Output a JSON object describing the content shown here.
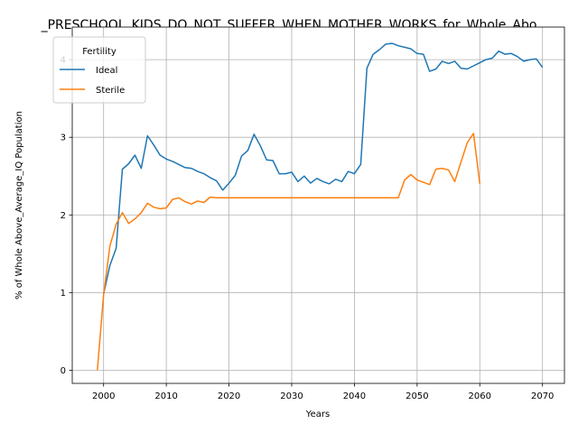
{
  "chart_data": {
    "type": "line",
    "title": "_PRESCHOOL_KIDS_DO_NOT_SUFFER_WHEN_MOTHER_WORKS_for_Whole_Abo",
    "xlabel": "Years",
    "ylabel": "% of Whole Above_Average_IQ Population",
    "xlim": [
      1995,
      2073.5
    ],
    "ylim": [
      -0.17,
      4.42
    ],
    "xticks": [
      2000,
      2010,
      2020,
      2030,
      2040,
      2050,
      2060,
      2070
    ],
    "yticks": [
      0,
      1,
      2,
      3,
      4
    ],
    "grid": true,
    "legend": {
      "title": "Fertility",
      "position": "top-left"
    },
    "series": [
      {
        "name": "Ideal",
        "color": "#1f77b4",
        "x": [
          2000,
          2001,
          2002,
          2003,
          2004,
          2005,
          2006,
          2007,
          2008,
          2009,
          2010,
          2011,
          2012,
          2013,
          2014,
          2015,
          2016,
          2017,
          2018,
          2019,
          2020,
          2021,
          2022,
          2023,
          2024,
          2025,
          2026,
          2027,
          2028,
          2029,
          2030,
          2031,
          2032,
          2033,
          2034,
          2035,
          2036,
          2037,
          2038,
          2039,
          2040,
          2041,
          2042,
          2043,
          2044,
          2045,
          2046,
          2047,
          2048,
          2049,
          2050,
          2051,
          2052,
          2053,
          2054,
          2055,
          2056,
          2057,
          2058,
          2059,
          2060,
          2061,
          2062,
          2063,
          2064,
          2065,
          2066,
          2067,
          2068,
          2069,
          2070
        ],
        "y": [
          0.98,
          1.35,
          1.57,
          2.59,
          2.66,
          2.77,
          2.6,
          3.02,
          2.9,
          2.77,
          2.72,
          2.69,
          2.65,
          2.61,
          2.6,
          2.56,
          2.53,
          2.48,
          2.44,
          2.32,
          2.41,
          2.51,
          2.76,
          2.83,
          3.04,
          2.89,
          2.71,
          2.7,
          2.53,
          2.53,
          2.55,
          2.43,
          2.5,
          2.41,
          2.47,
          2.43,
          2.4,
          2.46,
          2.43,
          2.56,
          2.53,
          2.65,
          3.89,
          4.07,
          4.13,
          4.2,
          4.21,
          4.18,
          4.16,
          4.14,
          4.08,
          4.07,
          3.85,
          3.88,
          3.98,
          3.95,
          3.98,
          3.89,
          3.88,
          3.92,
          3.96,
          4.0,
          4.02,
          4.11,
          4.07,
          4.08,
          4.04,
          3.98,
          4.0,
          4.01,
          3.9
        ]
      },
      {
        "name": "Sterile",
        "color": "#ff7f0e",
        "x": [
          1999,
          2000,
          2001,
          2002,
          2003,
          2004,
          2005,
          2006,
          2007,
          2008,
          2009,
          2010,
          2011,
          2012,
          2013,
          2014,
          2015,
          2016,
          2017,
          2018,
          2019,
          2020,
          2021,
          2022,
          2023,
          2024,
          2025,
          2026,
          2027,
          2028,
          2029,
          2030,
          2031,
          2032,
          2033,
          2034,
          2035,
          2036,
          2037,
          2038,
          2039,
          2040,
          2041,
          2042,
          2043,
          2044,
          2045,
          2046,
          2047,
          2048,
          2049,
          2050,
          2051,
          2052,
          2053,
          2054,
          2055,
          2056,
          2057,
          2058,
          2059,
          2060
        ],
        "y": [
          0.0,
          0.97,
          1.6,
          1.88,
          2.03,
          1.89,
          1.95,
          2.03,
          2.15,
          2.1,
          2.08,
          2.09,
          2.2,
          2.22,
          2.17,
          2.14,
          2.18,
          2.16,
          2.23,
          2.22,
          2.22,
          2.22,
          2.22,
          2.22,
          2.22,
          2.22,
          2.22,
          2.22,
          2.22,
          2.22,
          2.22,
          2.22,
          2.22,
          2.22,
          2.22,
          2.22,
          2.22,
          2.22,
          2.22,
          2.22,
          2.22,
          2.22,
          2.22,
          2.22,
          2.22,
          2.22,
          2.22,
          2.22,
          2.22,
          2.45,
          2.52,
          2.45,
          2.42,
          2.39,
          2.59,
          2.6,
          2.58,
          2.43,
          2.68,
          2.93,
          3.05,
          2.4
        ]
      }
    ]
  }
}
